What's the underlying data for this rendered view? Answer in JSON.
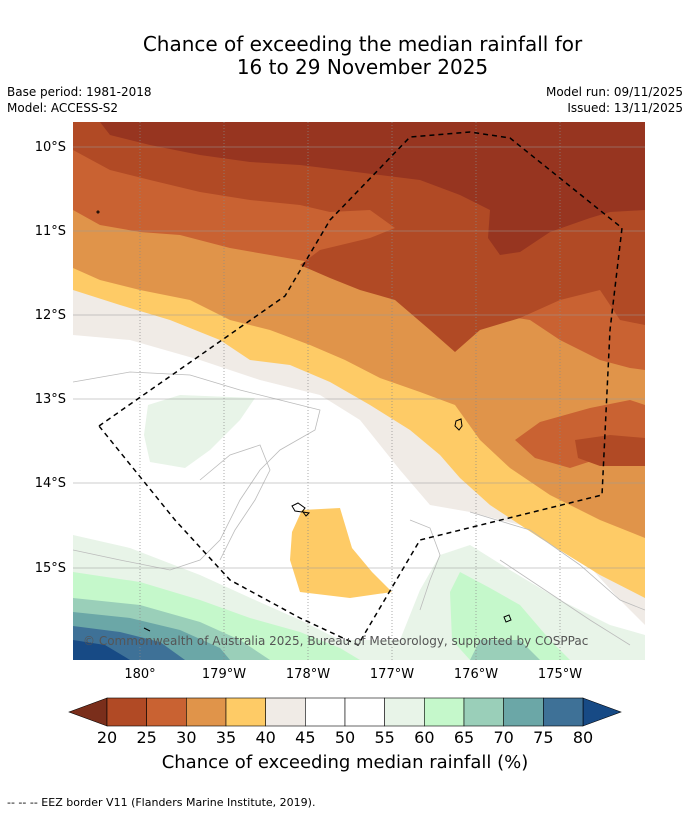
{
  "title": {
    "line1": "Chance of exceeding the median rainfall for",
    "line2": "16 to 29 November 2025"
  },
  "meta": {
    "base_period": "Base period: 1981-2018",
    "model": "Model: ACCESS-S2",
    "model_run": "Model run: 09/11/2025",
    "issued": "Issued: 13/11/2025"
  },
  "map": {
    "lat_labels": [
      "10°S",
      "11°S",
      "12°S",
      "13°S",
      "14°S",
      "15°S"
    ],
    "lon_labels": [
      "180°",
      "179°W",
      "178°W",
      "177°W",
      "176°W",
      "175°W"
    ],
    "credit": "© Commonwealth of Australia 2025, Bureau of Meteorology, supported by COSPPac"
  },
  "colorbar": {
    "ticks": [
      "20",
      "25",
      "30",
      "35",
      "40",
      "45",
      "50",
      "55",
      "60",
      "65",
      "70",
      "75",
      "80"
    ],
    "colors": {
      "below20": "#7a2e1b",
      "c20_25": "#b14a25",
      "c25_30": "#c96232",
      "c30_35": "#e0944a",
      "c35_40": "#fecb66",
      "c40_45": "#f0ebe6",
      "c45_50": "#ffffff",
      "c50_55": "#ffffff",
      "c55_60": "#e8f4e8",
      "c60_65": "#c5f8cb",
      "c65_70": "#9acfb9",
      "c70_75": "#6ba7a7",
      "c75_80": "#3e7197",
      "above80": "#174a85",
      "darkest_map": "#973520"
    },
    "title": "Chance of exceeding median rainfall (%)"
  },
  "footnote": "--  --  -- EEZ border V11 (Flanders Marine Institute, 2019)."
}
